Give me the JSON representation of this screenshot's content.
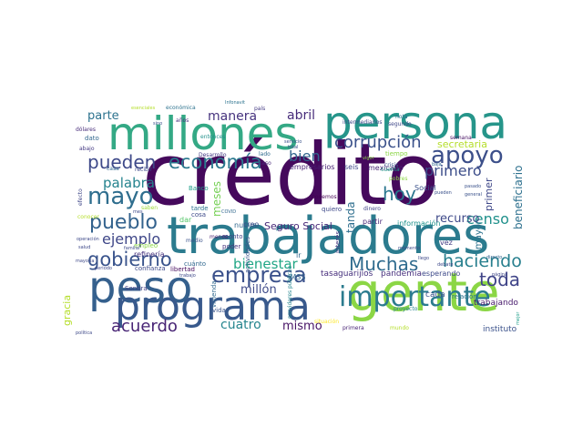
{
  "words": [
    {
      "text": "crédito",
      "color": "#45095c"
    },
    {
      "text": "persona",
      "color": "#26958a"
    },
    {
      "text": "millones",
      "color": "#34a985"
    },
    {
      "text": "gente",
      "color": "#8bd645"
    },
    {
      "text": "trabajadores",
      "color": "#2b7b8e"
    },
    {
      "text": "peso",
      "color": "#35608d"
    },
    {
      "text": "programa",
      "color": "#38598c"
    },
    {
      "text": "importante",
      "color": "#2b7b8e"
    },
    {
      "text": "empresa",
      "color": "#3b518b"
    },
    {
      "text": "gobierno",
      "color": "#3a548c"
    },
    {
      "text": "pueblo",
      "color": "#33628d"
    },
    {
      "text": "mayo",
      "color": "#2f6e8e"
    },
    {
      "text": "economía",
      "color": "#2a788e"
    },
    {
      "text": "pueden",
      "color": "#3e4989"
    },
    {
      "text": "apoyo",
      "color": "#3c4f8a"
    },
    {
      "text": "corrupción",
      "color": "#3b528b"
    },
    {
      "text": "haciendo",
      "color": "#277f8e"
    },
    {
      "text": "Muchas",
      "color": "#2f6b8e"
    },
    {
      "text": "acuerdo",
      "color": "#482475"
    },
    {
      "text": "ejemplo",
      "color": "#3f4788"
    },
    {
      "text": "palabra",
      "color": "#25838e"
    },
    {
      "text": "toda",
      "color": "#404588"
    },
    {
      "text": "hoy",
      "color": "#2a768e"
    },
    {
      "text": "bien",
      "color": "#31668e"
    },
    {
      "text": "censo",
      "color": "#21918c"
    },
    {
      "text": "primero",
      "color": "#3d4e8a"
    },
    {
      "text": "bienestar",
      "color": "#21a685"
    },
    {
      "text": "manera",
      "color": "#46337e"
    },
    {
      "text": "abril",
      "color": "#472c7a"
    },
    {
      "text": "parte",
      "color": "#2c728e"
    },
    {
      "text": "cuatro",
      "color": "#25858e"
    },
    {
      "text": "mismo",
      "color": "#471365"
    },
    {
      "text": "millón",
      "color": "#3e4a89"
    },
    {
      "text": "recurso",
      "color": "#3e4989"
    },
    {
      "text": "secretaria",
      "color": "#b5de2b"
    },
    {
      "text": "beneficiario",
      "color": "#2d708e"
    },
    {
      "text": "primer",
      "color": "#3f4889"
    },
    {
      "text": "tanda",
      "color": "#2e6e8e"
    },
    {
      "text": "meses",
      "color": "#75d054"
    },
    {
      "text": "gracia",
      "color": "#b5de2b"
    },
    {
      "text": "Seguro Social",
      "color": "#482979"
    },
    {
      "text": "mayor",
      "color": "#2c728e"
    },
    {
      "text": "tasa",
      "color": "#472d7b"
    },
    {
      "text": "guarijíos",
      "color": "#46327e"
    },
    {
      "text": "pandemia",
      "color": "#472f7d"
    },
    {
      "text": "esperando",
      "color": "#3e4a89"
    },
    {
      "text": "cada",
      "color": "#3b528b"
    },
    {
      "text": "trabajando",
      "color": "#481a6c"
    },
    {
      "text": "instituto",
      "color": "#3b528b"
    },
    {
      "text": "relación",
      "color": "#2c738e"
    },
    {
      "text": "información",
      "color": "#20928c"
    },
    {
      "text": "partir",
      "color": "#482878"
    },
    {
      "text": "Social",
      "color": "#3b528b"
    },
    {
      "text": "seis",
      "color": "#3e4989"
    },
    {
      "text": "empresarios",
      "color": "#482173"
    },
    {
      "text": "mexicano",
      "color": "#482475"
    },
    {
      "text": "podemos",
      "color": "#440154"
    },
    {
      "text": "nueva",
      "color": "#31688e"
    },
    {
      "text": "monto",
      "color": "#414487"
    },
    {
      "text": "poder",
      "color": "#46337e"
    },
    {
      "text": "creo",
      "color": "#3d4d8a"
    },
    {
      "text": "ir",
      "color": "#31688e"
    },
    {
      "text": "IMSS",
      "color": "#31688e"
    },
    {
      "text": "servidores públicos",
      "color": "#25858e"
    },
    {
      "text": "actividades",
      "color": "#3a548c"
    },
    {
      "text": "vivienda",
      "color": "#31688e"
    },
    {
      "text": "tarde",
      "color": "#2c728e"
    },
    {
      "text": "cosa",
      "color": "#3e4a89"
    },
    {
      "text": "dar",
      "color": "#54c568"
    },
    {
      "text": "Banco",
      "color": "#1f9e89"
    },
    {
      "text": "refinería",
      "color": "#46327e"
    },
    {
      "text": "libertad",
      "color": "#460b5e"
    },
    {
      "text": "cuánto",
      "color": "#31688e"
    },
    {
      "text": "confianza",
      "color": "#3e4a89"
    },
    {
      "text": "Sonora",
      "color": "#424186"
    },
    {
      "text": "empleo",
      "color": "#8bd645"
    },
    {
      "text": "saben",
      "color": "#9fda3a"
    },
    {
      "text": "interés",
      "color": "#46337e"
    },
    {
      "text": "vez",
      "color": "#433e85"
    },
    {
      "text": "dinero",
      "color": "#414487"
    },
    {
      "text": "quiero",
      "color": "#3e4989"
    },
    {
      "text": "semana",
      "color": "#471063"
    },
    {
      "text": "tiempo",
      "color": "#8bd645"
    },
    {
      "text": "nota",
      "color": "#2e6f8e"
    },
    {
      "text": "segundo",
      "color": "#3f4788"
    },
    {
      "text": "lado",
      "color": "#2f6c8e"
    },
    {
      "text": "caso",
      "color": "#482677"
    },
    {
      "text": "entonces",
      "color": "#21918c"
    },
    {
      "text": "vida",
      "color": "#3a548c"
    },
    {
      "text": "mundo",
      "color": "#b5de2b"
    },
    {
      "text": "situación",
      "color": "#fde725"
    },
    {
      "text": "proyecto",
      "color": "#26828e"
    },
    {
      "text": "primera",
      "color": "#482475"
    },
    {
      "text": "dato",
      "color": "#31688e"
    },
    {
      "text": "abajo",
      "color": "#443983"
    },
    {
      "text": "dólares",
      "color": "#472c7a"
    },
    {
      "text": "años",
      "color": "#472f7d"
    },
    {
      "text": "sino",
      "color": "#3b528b"
    },
    {
      "text": "país",
      "color": "#443a83"
    },
    {
      "text": "económica",
      "color": "#2c728e"
    },
    {
      "text": "esenciales",
      "color": "#b5de2b"
    },
    {
      "text": "Infonavit",
      "color": "#2c738e"
    },
    {
      "text": "intermediarios",
      "color": "#3e4a89"
    },
    {
      "text": "crisis",
      "color": "#3b528b"
    },
    {
      "text": "directo",
      "color": "#33638d"
    },
    {
      "text": "mejor",
      "color": "#1f9e89"
    },
    {
      "text": "página",
      "color": "#3f4788"
    },
    {
      "text": "cuenta",
      "color": "#1f9e89"
    },
    {
      "text": "general",
      "color": "#3b528b"
    },
    {
      "text": "pasado",
      "color": "#3b528b"
    },
    {
      "text": "pueden",
      "color": "#3b528b"
    },
    {
      "text": "baja",
      "color": "#31688e"
    },
    {
      "text": "medio",
      "color": "#3b528b"
    },
    {
      "text": "menos",
      "color": "#481f70"
    },
    {
      "text": "Desarrollo",
      "color": "#443983"
    },
    {
      "text": "servicio",
      "color": "#3b528b"
    },
    {
      "text": "total",
      "color": "#3b528b"
    },
    {
      "text": "COVID",
      "color": "#31688e"
    },
    {
      "text": "efecto",
      "color": "#3f4788"
    },
    {
      "text": "conocer",
      "color": "#b5de2b"
    },
    {
      "text": "salud",
      "color": "#3e4989"
    },
    {
      "text": "operación",
      "color": "#3e4989"
    },
    {
      "text": "mayoría",
      "color": "#3e4989"
    },
    {
      "text": "política",
      "color": "#3e4989"
    },
    {
      "text": "periodo",
      "color": "#3e4989"
    },
    {
      "text": "familia",
      "color": "#3e4989"
    },
    {
      "text": "recibir",
      "color": "#3e4989"
    },
    {
      "text": "casa",
      "color": "#31688e"
    },
    {
      "text": "mes",
      "color": "#3e4989"
    },
    {
      "text": "trabajo",
      "color": "#3e4989"
    },
    {
      "text": "llego",
      "color": "#3e4989"
    },
    {
      "text": "momento",
      "color": "#3e4989"
    },
    {
      "text": "debate",
      "color": "#3e4989"
    },
    {
      "text": "pobres",
      "color": "#8bd645"
    },
    {
      "text": "vigor",
      "color": "#8bd645"
    }
  ]
}
